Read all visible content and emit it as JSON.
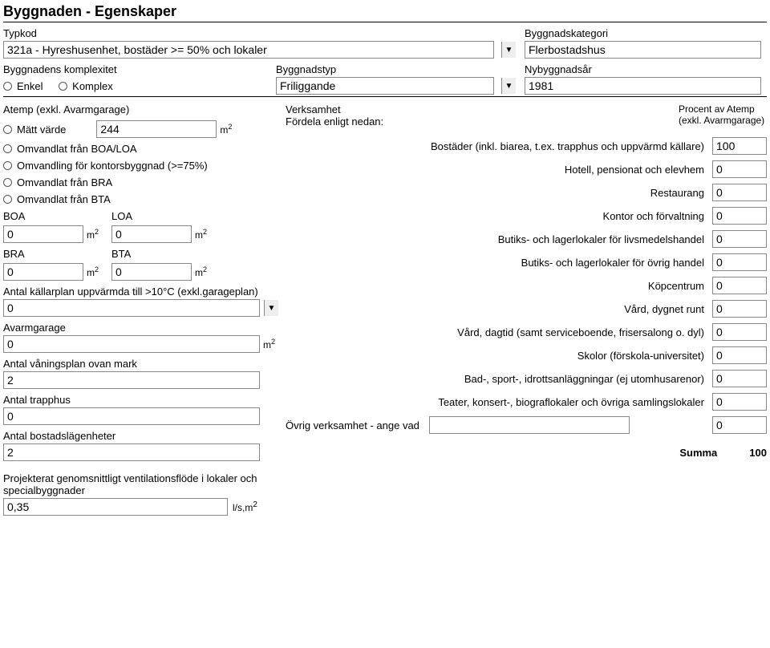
{
  "heading": "Byggnaden - Egenskaper",
  "typkod": {
    "label": "Typkod",
    "value": "321a - Hyreshusenhet, bostäder >= 50% och lokaler"
  },
  "kategori": {
    "label": "Byggnadskategori",
    "value": "Flerbostadshus"
  },
  "komplexitet": {
    "label": "Byggnadens komplexitet",
    "opt_enkel": "Enkel",
    "opt_komplex": "Komplex"
  },
  "byggnadstyp": {
    "label": "Byggnadstyp",
    "value": "Friliggande"
  },
  "nybyggnadsar": {
    "label": "Nybyggnadsår",
    "value": "1981"
  },
  "atemp": {
    "label": "Atemp (exkl. Avarmgarage)",
    "opt_matt": "Mätt värde",
    "matt_value": "244",
    "opt_omv_boa_loa": "Omvandlat från BOA/LOA",
    "opt_omv_kontor": "Omvandling för kontorsbyggnad (>=75%)",
    "opt_omv_bra": "Omvandlat från BRA",
    "opt_omv_bta": "Omvandlat från BTA"
  },
  "areas": {
    "boa_label": "BOA",
    "boa": "0",
    "loa_label": "LOA",
    "loa": "0",
    "bra_label": "BRA",
    "bra": "0",
    "bta_label": "BTA",
    "bta": "0"
  },
  "kallarplan": {
    "label": "Antal källarplan uppvärmda till >10°C (exkl.garageplan)",
    "value": "0"
  },
  "avarmgarage": {
    "label": "Avarmgarage",
    "value": "0"
  },
  "vaningsplan": {
    "label": "Antal våningsplan ovan mark",
    "value": "2"
  },
  "trapphus": {
    "label": "Antal trapphus",
    "value": "0"
  },
  "bostadslagenheter": {
    "label": "Antal bostadslägenheter",
    "value": "2"
  },
  "ventflode": {
    "label": "Projekterat genomsnittligt ventilationsflöde i lokaler och specialbyggnader",
    "value": "0,35",
    "unit": "l/s,m²"
  },
  "verksamhet": {
    "title": "Verksamhet",
    "subtitle": "Fördela enligt nedan:",
    "pct_label": "Procent av Atemp (exkl. Avarmgarage)",
    "rows": [
      {
        "label": "Bostäder (inkl. biarea, t.ex. trapphus och uppvärmd källare)",
        "value": "100"
      },
      {
        "label": "Hotell, pensionat och elevhem",
        "value": "0"
      },
      {
        "label": "Restaurang",
        "value": "0"
      },
      {
        "label": "Kontor och förvaltning",
        "value": "0"
      },
      {
        "label": "Butiks- och lagerlokaler för livsmedelshandel",
        "value": "0"
      },
      {
        "label": "Butiks- och lagerlokaler för övrig handel",
        "value": "0"
      },
      {
        "label": "Köpcentrum",
        "value": "0"
      },
      {
        "label": "Vård, dygnet runt",
        "value": "0"
      },
      {
        "label": "Vård, dagtid (samt serviceboende, frisersalong o. dyl)",
        "value": "0"
      },
      {
        "label": "Skolor (förskola-universitet)",
        "value": "0"
      },
      {
        "label": "Bad-, sport-, idrottsanläggningar (ej utomhusarenor)",
        "value": "0"
      },
      {
        "label": "Teater, konsert-, biograflokaler och övriga samlingslokaler",
        "value": "0"
      }
    ],
    "other_label": "Övrig verksamhet - ange vad",
    "other_text": "",
    "other_value": "0",
    "sum_label": "Summa",
    "sum_value": "100"
  },
  "units": {
    "m2": "m²"
  }
}
